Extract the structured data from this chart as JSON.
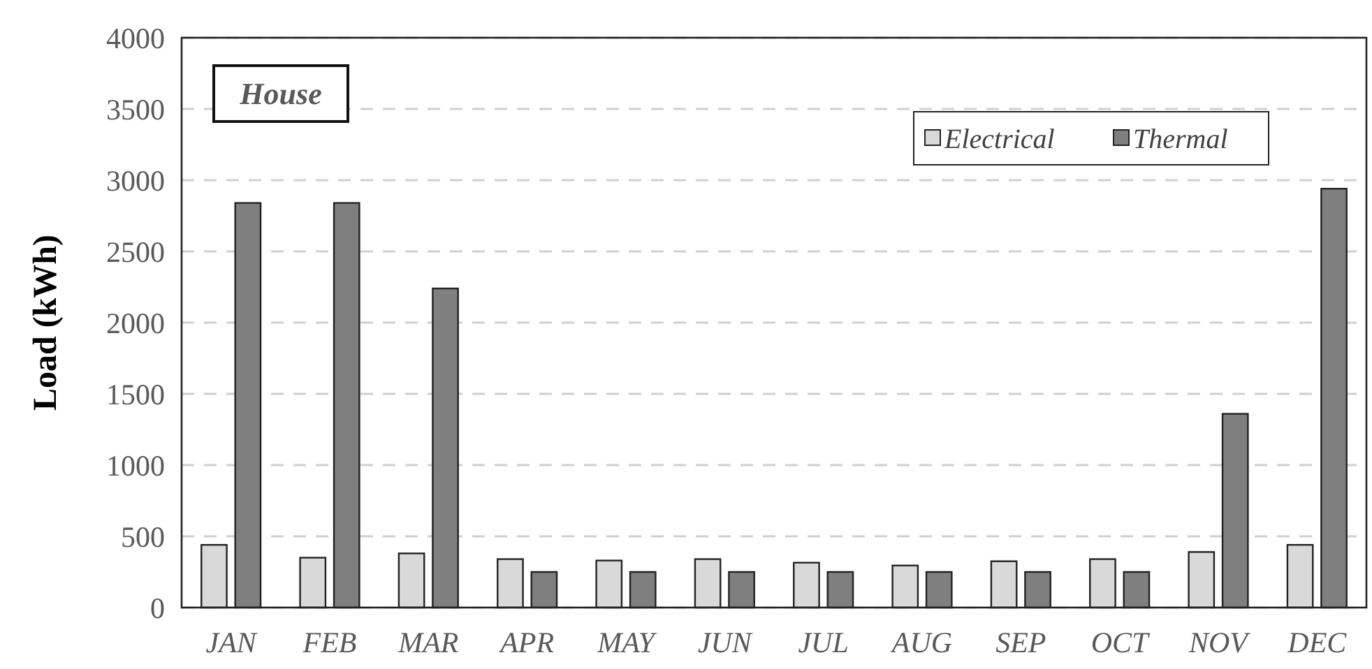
{
  "chart_data": {
    "type": "bar",
    "ylabel": "Load (kWh)",
    "annotations": [
      "House"
    ],
    "categories": [
      "JAN",
      "FEB",
      "MAR",
      "APR",
      "MAY",
      "JUN",
      "JUL",
      "AUG",
      "SEP",
      "OCT",
      "NOV",
      "DEC"
    ],
    "series": [
      {
        "name": "Electrical",
        "color": "#d9d9d9",
        "values": [
          440,
          350,
          380,
          340,
          330,
          340,
          315,
          295,
          325,
          340,
          390,
          440
        ]
      },
      {
        "name": "Thermal",
        "color": "#7f7f7f",
        "values": [
          2840,
          2840,
          2240,
          250,
          250,
          250,
          250,
          250,
          250,
          250,
          1360,
          2940
        ]
      }
    ],
    "ylim": [
      0,
      4000
    ],
    "yticks": [
      0,
      500,
      1000,
      1500,
      2000,
      2500,
      3000,
      3500,
      4000
    ],
    "grid": "y",
    "legend": "top right"
  }
}
